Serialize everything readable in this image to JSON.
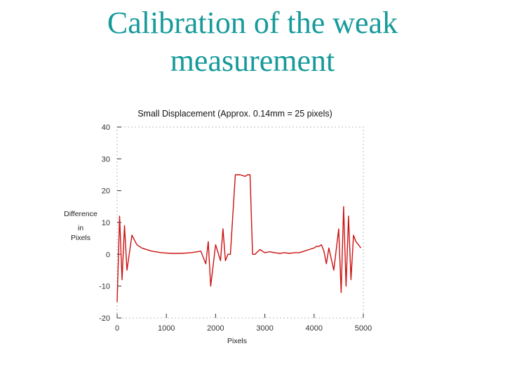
{
  "slide": {
    "title_line1": "Calibration of the weak",
    "title_line2": "measurement"
  },
  "colors": {
    "title": "#169a9a",
    "series": "#cc1111",
    "axis": "#333333"
  },
  "chart_data": {
    "type": "line",
    "title": "Small Displacement (Approx. 0.14mm = 25 pixels)",
    "xlabel": "Pixels",
    "ylabel": [
      "Difference",
      "in",
      "Pixels"
    ],
    "xlim": [
      0,
      5000
    ],
    "ylim": [
      -20,
      40
    ],
    "xticks": [
      0,
      1000,
      2000,
      3000,
      4000,
      5000
    ],
    "xtick_labels": [
      "0",
      "1000",
      "2000",
      "3000",
      "4000",
      "5000"
    ],
    "yticks": [
      -20,
      -10,
      0,
      10,
      20,
      30,
      40
    ],
    "ytick_labels": [
      "-20",
      "-10",
      "0",
      "10",
      "20",
      "30",
      "40"
    ],
    "grid": false,
    "legend": "none",
    "series": [
      {
        "x": [
          0,
          50,
          100,
          150,
          200,
          300,
          400,
          500,
          700,
          900,
          1100,
          1300,
          1500,
          1700,
          1800,
          1850,
          1900,
          2000,
          2100,
          2150,
          2200,
          2250,
          2300,
          2400,
          2500,
          2600,
          2650,
          2700,
          2750,
          2800,
          2900,
          3000,
          3100,
          3200,
          3300,
          3400,
          3500,
          3600,
          3700,
          3800,
          3900,
          4000,
          4050,
          4100,
          4150,
          4200,
          4250,
          4300,
          4400,
          4500,
          4550,
          4600,
          4650,
          4700,
          4750,
          4800,
          4850,
          4900,
          4950
        ],
        "y": [
          -15,
          12,
          -8,
          9,
          -5,
          6,
          3,
          2,
          1,
          0.5,
          0.3,
          0.3,
          0.5,
          1,
          -3,
          4,
          -10,
          3,
          -2,
          8,
          -2,
          0,
          0,
          25,
          25,
          24.5,
          25,
          25,
          0,
          0,
          1.5,
          0.5,
          0.8,
          0.5,
          0.3,
          0.5,
          0.3,
          0.5,
          0.5,
          1,
          1.5,
          2,
          2.5,
          2.5,
          3,
          1,
          -3,
          2,
          -5,
          8,
          -12,
          15,
          -10,
          12,
          -8,
          6,
          4,
          3,
          2
        ]
      }
    ]
  }
}
